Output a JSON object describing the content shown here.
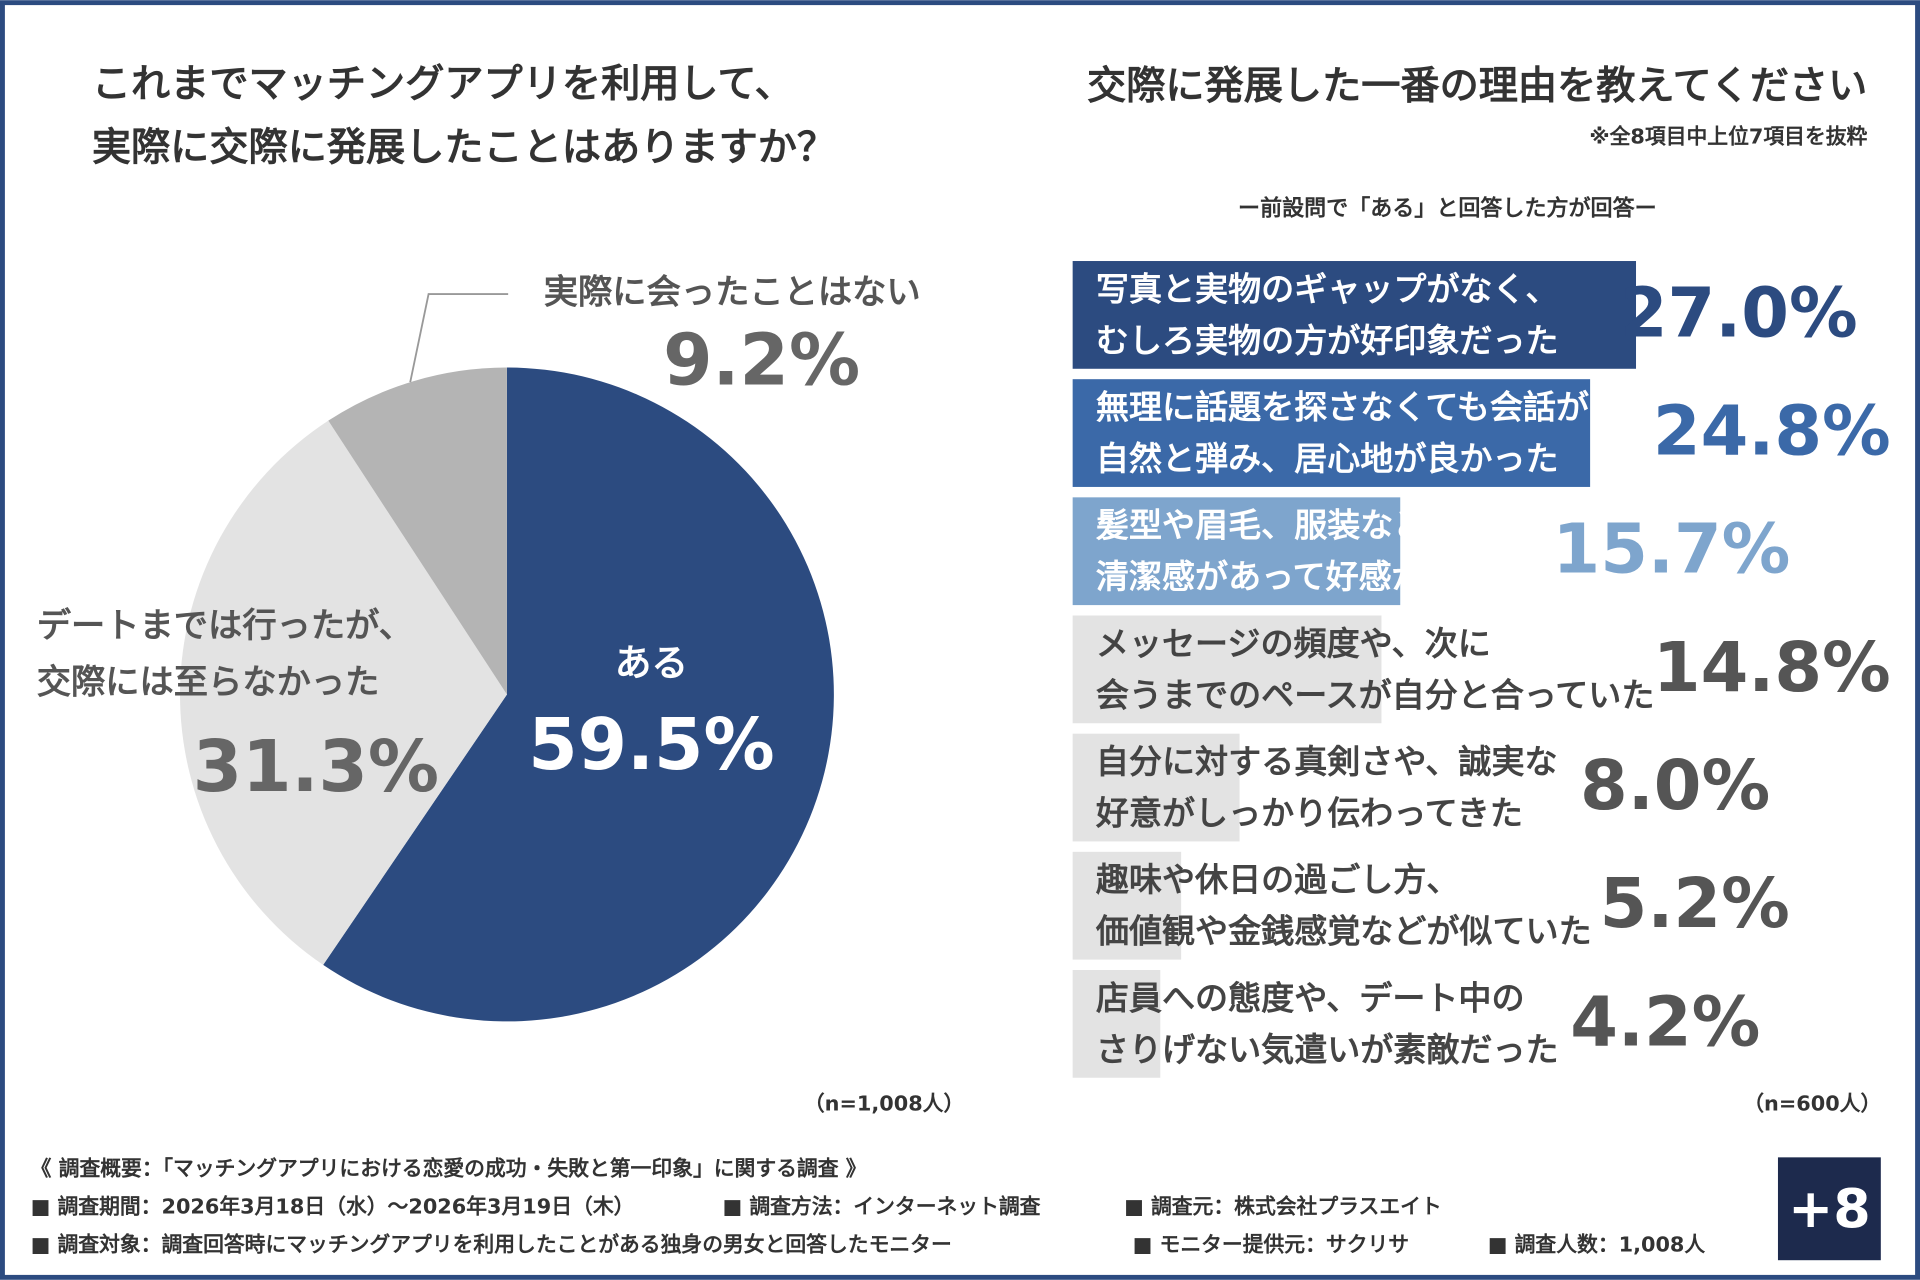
{
  "chart_data": [
    {
      "type": "pie",
      "title": "これまでマッチングアプリを利用して、\n実際に交際に発展したことはありますか？",
      "categories": [
        "ある",
        "デートまでは行ったが、\n交際には至らなかった",
        "実際に会ったことはない"
      ],
      "values": [
        59.5,
        31.3,
        9.2
      ],
      "value_labels": [
        "59.5%",
        "31.3%",
        "9.2%"
      ],
      "colors": [
        "#2c4b80",
        "#e3e3e3",
        "#b4b4b4"
      ],
      "note": "（n=1,008人）"
    },
    {
      "type": "hbar",
      "title": "交際に発展した一番の理由を教えてください",
      "subtitle": "※全8項目中上位7項目を抜粋",
      "caption": "ー前設問で「ある」と回答した方が回答ー",
      "categories": [
        "写真と実物のギャップがなく、\nむしろ実物の方が好印象だった",
        "無理に話題を探さなくても会話が\n自然と弾み、居心地が良かった",
        "髪型や眉毛、服装などに\n清潔感があって好感が持てた",
        "メッセージの頻度や、次に\n会うまでのペースが自分と合っていた",
        "自分に対する真剣さや、誠実な\n好意がしっかり伝わってきた",
        "趣味や休日の過ごし方、\n価値観や金銭感覚などが似ていた",
        "店員への態度や、デート中の\nさりげない気遣いが素敵だった"
      ],
      "values": [
        27.0,
        24.8,
        15.7,
        14.8,
        8.0,
        5.2,
        4.2
      ],
      "value_labels": [
        "27.0%",
        "24.8%",
        "15.7%",
        "14.8%",
        "8.0%",
        "5.2%",
        "4.2%"
      ],
      "colors": [
        "#2c4b80",
        "#3b69a8",
        "#7ea5cd",
        "#e3e3e3",
        "#e3e3e3",
        "#e3e3e3",
        "#e3e3e3"
      ],
      "label_colors": [
        "#2c4b80",
        "#3b69a8",
        "#7ea5cd",
        "#555555",
        "#555555",
        "#555555",
        "#555555"
      ],
      "note": "（n=600人）"
    }
  ],
  "footer": {
    "summary": "《 調査概要：「マッチングアプリにおける恋愛の成功・失敗と第一印象」に関する調査 》",
    "items": [
      "■ 調査期間：2026年3月18日（水）～2026年3月19日（木）",
      "■ 調査方法：インターネット調査",
      "■ 調査元：株式会社プラスエイト",
      "■ 調査対象：調査回答時にマッチングアプリを利用したことがある独身の男女と回答したモニター",
      "■ モニター提供元：サクリサ",
      "■ 調査人数：1,008人"
    ],
    "logo": "+8"
  }
}
